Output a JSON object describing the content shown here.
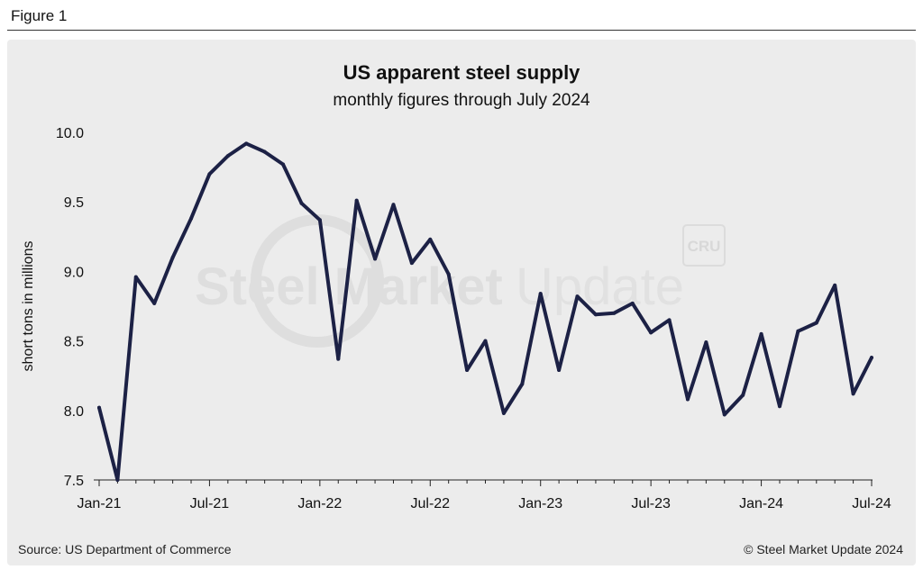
{
  "figure_label": "Figure 1",
  "source": "Source: US Department of Commerce",
  "copyright": "© Steel Market Update 2024",
  "watermark": {
    "text_bold": "Steel Market",
    "text_light": "Update",
    "badge": "CRU"
  },
  "colors": {
    "line": "#1c2145",
    "panel": "#ececec",
    "text": "#111111",
    "watermark": "#dedede"
  },
  "chart_data": {
    "type": "line",
    "title": "US apparent steel supply",
    "subtitle": "monthly figures through July 2024",
    "xlabel": "",
    "ylabel": "short tons in millions",
    "ylim": [
      7.5,
      10.0
    ],
    "yticks": [
      "10.0",
      "9.5",
      "9.0",
      "8.5",
      "8.0",
      "7.5"
    ],
    "xtick_labels": [
      "Jan-21",
      "Jul-21",
      "Jan-22",
      "Jul-22",
      "Jan-23",
      "Jul-23",
      "Jan-24",
      "Jul-24"
    ],
    "xtick_every": 6,
    "grid": false,
    "series": [
      {
        "name": "US apparent steel supply",
        "x": [
          "Jan-21",
          "Feb-21",
          "Mar-21",
          "Apr-21",
          "May-21",
          "Jun-21",
          "Jul-21",
          "Aug-21",
          "Sep-21",
          "Oct-21",
          "Nov-21",
          "Dec-21",
          "Jan-22",
          "Feb-22",
          "Mar-22",
          "Apr-22",
          "May-22",
          "Jun-22",
          "Jul-22",
          "Aug-22",
          "Sep-22",
          "Oct-22",
          "Nov-22",
          "Dec-22",
          "Jan-23",
          "Feb-23",
          "Mar-23",
          "Apr-23",
          "May-23",
          "Jun-23",
          "Jul-23",
          "Aug-23",
          "Sep-23",
          "Oct-23",
          "Nov-23",
          "Dec-23",
          "Jan-24",
          "Feb-24",
          "Mar-24",
          "Apr-24",
          "May-24",
          "Jun-24",
          "Jul-24"
        ],
        "values": [
          8.02,
          7.5,
          8.96,
          8.77,
          9.1,
          9.38,
          9.7,
          9.83,
          9.92,
          9.86,
          9.77,
          9.49,
          9.37,
          8.37,
          9.51,
          9.09,
          9.48,
          9.06,
          9.23,
          8.98,
          8.29,
          8.5,
          7.98,
          8.19,
          8.84,
          8.29,
          8.82,
          8.69,
          8.7,
          8.77,
          8.56,
          8.65,
          8.08,
          8.49,
          7.97,
          8.11,
          8.55,
          8.03,
          8.57,
          8.63,
          8.9,
          8.12,
          8.38
        ]
      }
    ]
  }
}
